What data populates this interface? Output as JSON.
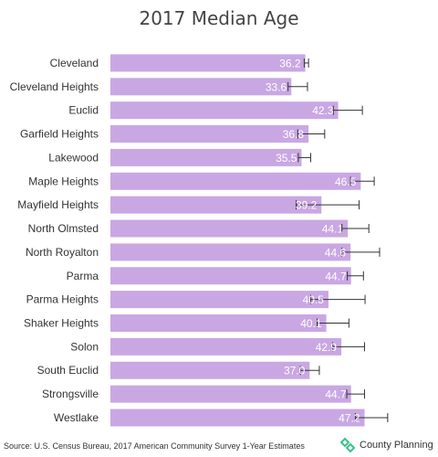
{
  "chart_data": {
    "type": "bar",
    "orientation": "horizontal",
    "title": "2017 Median Age",
    "categories": [
      "Cleveland",
      "Cleveland Heights",
      "Euclid",
      "Garfield Heights",
      "Lakewood",
      "Maple Heights",
      "Mayfield Heights",
      "North Olmsted",
      "North Royalton",
      "Parma",
      "Parma Heights",
      "Shaker Heights",
      "Solon",
      "South Euclid",
      "Strongsville",
      "Westlake"
    ],
    "values": [
      36.2,
      33.6,
      42.3,
      36.8,
      35.5,
      46.5,
      39.2,
      44.1,
      44.6,
      44.7,
      40.5,
      40.1,
      42.9,
      37.0,
      44.7,
      47.2
    ],
    "value_labels": [
      "36.2",
      "33.6",
      "42.3",
      "36.8",
      "35.5",
      "46.5",
      "39.2",
      "44.1",
      "44.6",
      "44.7",
      "40.5",
      "40.1",
      "42.9",
      "37.0",
      "44.7",
      "47.2"
    ],
    "error_low": [
      36.0,
      33.0,
      41.4,
      34.8,
      34.9,
      44.6,
      34.5,
      43.0,
      43.0,
      44.0,
      37.2,
      38.4,
      41.3,
      35.3,
      43.9,
      45.5
    ],
    "error_high": [
      36.8,
      36.6,
      46.8,
      39.8,
      37.2,
      49.0,
      46.2,
      48.0,
      50.0,
      47.0,
      47.3,
      44.3,
      47.2,
      38.8,
      47.2,
      51.5
    ],
    "xlim": [
      0,
      60
    ],
    "bar_color": "#c9a7e3",
    "error_color": "#333333",
    "label_color": "#ffffff",
    "grid": false,
    "legend": "none"
  },
  "footer": {
    "source": "Source: U.S. Census Bureau, 2017 American Community Survey 1-Year Estimates",
    "brand": "County Planning"
  },
  "colors": {
    "brand_green": "#3dbf8a"
  }
}
